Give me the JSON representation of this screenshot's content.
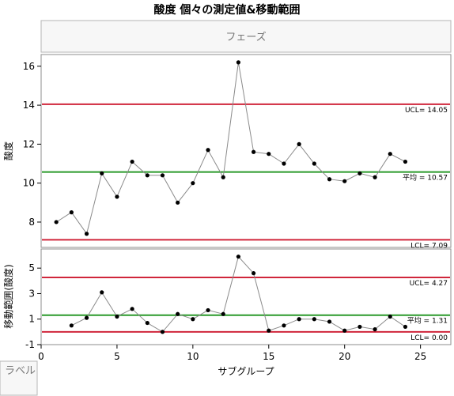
{
  "chart_data": {
    "type": "line",
    "title": "酸度  個々の測定値&移動範囲",
    "phase_box_label": "フェーズ",
    "corner_label": "ラベル",
    "xlabel": "サブグループ",
    "x_range": [
      0,
      27
    ],
    "x_ticks": [
      0,
      5,
      10,
      15,
      20,
      25
    ],
    "individuals": {
      "ylabel": "酸度",
      "y_range": [
        6.7,
        16.6
      ],
      "y_ticks": [
        8,
        10,
        12,
        14,
        16
      ],
      "x": [
        1,
        2,
        3,
        4,
        5,
        6,
        7,
        8,
        9,
        10,
        11,
        12,
        13,
        14,
        15,
        16,
        17,
        18,
        19,
        20,
        21,
        22,
        23,
        24
      ],
      "values": [
        8.0,
        8.5,
        7.4,
        10.5,
        9.3,
        11.1,
        10.4,
        10.4,
        9.0,
        10.0,
        11.7,
        10.3,
        16.2,
        11.6,
        11.5,
        11.0,
        12.0,
        11.0,
        10.2,
        10.1,
        10.5,
        10.3,
        11.5,
        11.1
      ],
      "ucl": 14.05,
      "center": 10.57,
      "lcl": 7.09,
      "ucl_label": "UCL= 14.05",
      "center_label": "平均 = 10.57",
      "lcl_label": "LCL= 7.09"
    },
    "moving_range": {
      "ylabel": "移動範囲(酸度)",
      "y_range": [
        -1,
        6.5
      ],
      "y_ticks": [
        -1,
        1,
        3,
        5
      ],
      "x": [
        2,
        3,
        4,
        5,
        6,
        7,
        8,
        9,
        10,
        11,
        12,
        13,
        14,
        15,
        16,
        17,
        18,
        19,
        20,
        21,
        22,
        23,
        24
      ],
      "values": [
        0.5,
        1.1,
        3.1,
        1.2,
        1.8,
        0.7,
        0.0,
        1.4,
        1.0,
        1.7,
        1.4,
        5.9,
        4.6,
        0.1,
        0.5,
        1.0,
        1.0,
        0.8,
        0.1,
        0.4,
        0.2,
        1.2,
        0.4
      ],
      "ucl": 4.27,
      "center": 1.31,
      "lcl": 0.0,
      "ucl_label": "UCL= 4.27",
      "center_label": "平均 = 1.31",
      "lcl_label": "LCL= 0.00"
    },
    "colors": {
      "limit": "#d0263b",
      "center": "#2a9a2a",
      "series": "#8a8a8a",
      "point": "#000000"
    }
  }
}
